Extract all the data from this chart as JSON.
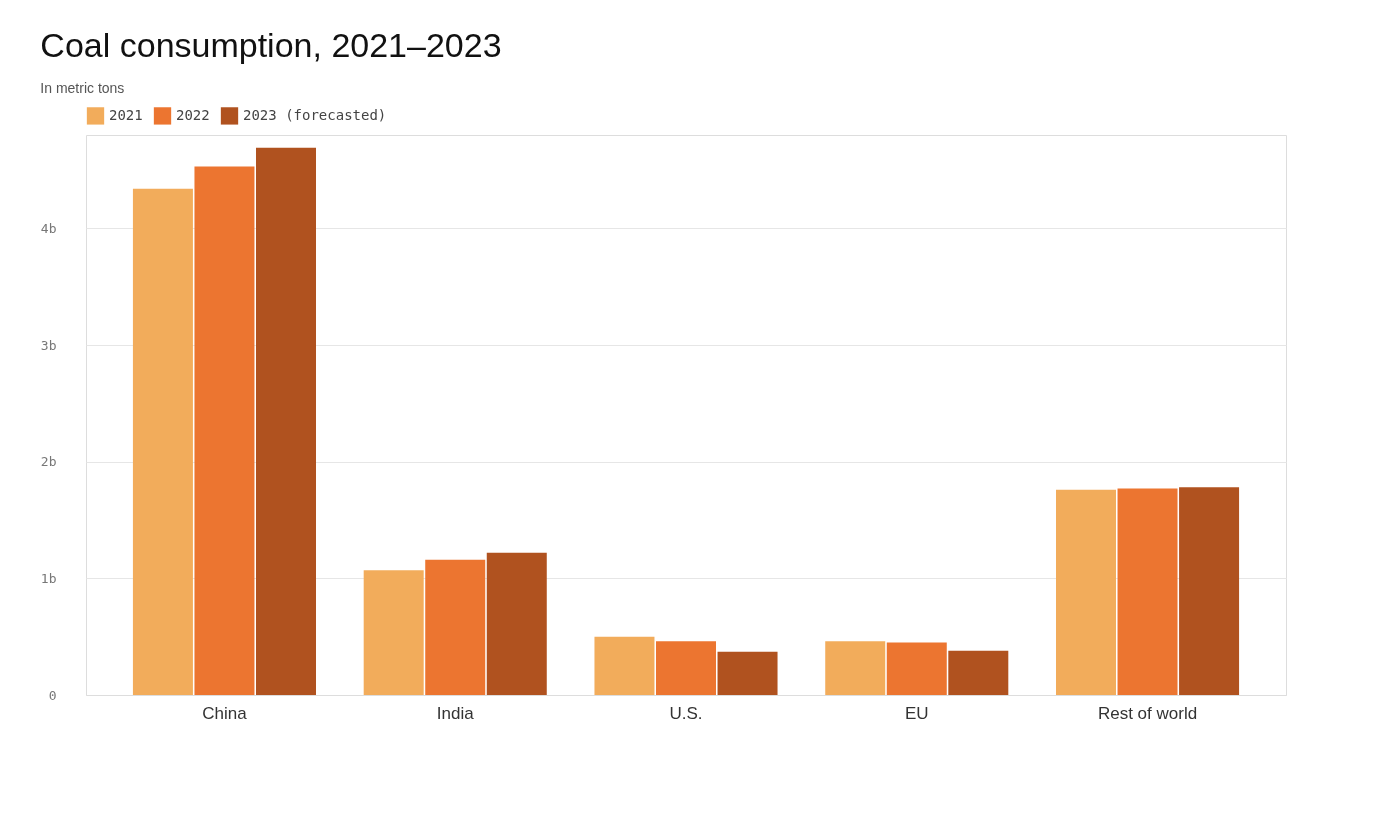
{
  "chart_data": {
    "type": "bar",
    "title": "Coal consumption, 2021–2023",
    "subtitle": "In metric tons",
    "categories": [
      "China",
      "India",
      "U.S.",
      "EU",
      "Rest of world"
    ],
    "series": [
      {
        "name": "2021",
        "color": "#f2ac5b",
        "values": [
          4.34,
          1.07,
          0.5,
          0.46,
          1.76
        ]
      },
      {
        "name": "2022",
        "color": "#ec7530",
        "values": [
          4.53,
          1.16,
          0.46,
          0.45,
          1.77
        ]
      },
      {
        "name": "2023 (forecasted)",
        "color": "#b0521f",
        "values": [
          4.69,
          1.22,
          0.37,
          0.38,
          1.78
        ]
      }
    ],
    "ylim": [
      0,
      4.8
    ],
    "yticks": [
      {
        "value": 0,
        "label": "0"
      },
      {
        "value": 1,
        "label": "1b"
      },
      {
        "value": 2,
        "label": "2b"
      },
      {
        "value": 3,
        "label": "3b"
      },
      {
        "value": 4,
        "label": "4b"
      }
    ],
    "grid": "y",
    "legend": "top left"
  }
}
